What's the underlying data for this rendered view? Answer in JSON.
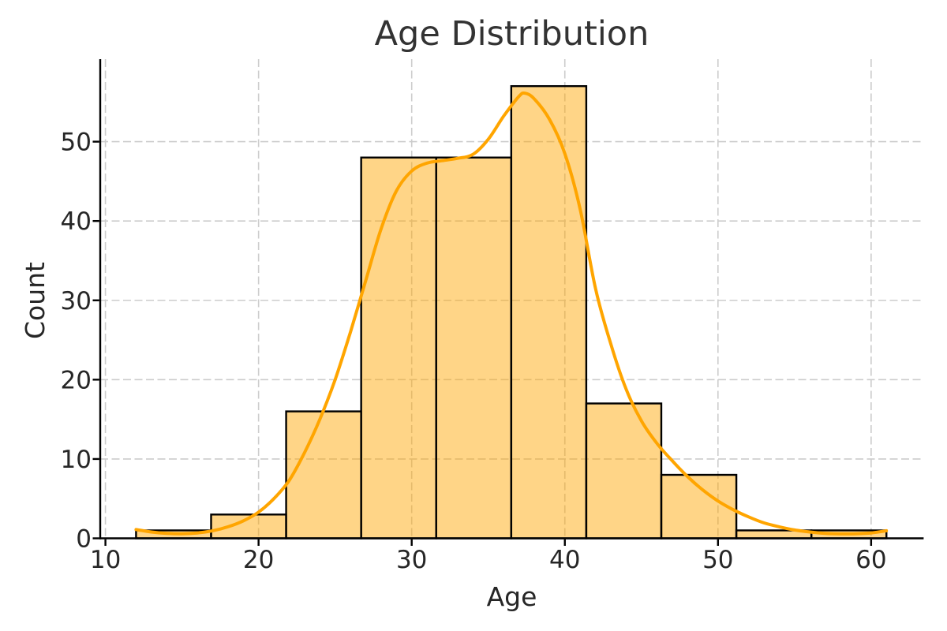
{
  "chart_data": {
    "type": "bar",
    "subtype": "histogram_with_kde",
    "title": "Age Distribution",
    "xlabel": "Age",
    "ylabel": "Count",
    "bin_edges": [
      12.0,
      16.9,
      21.8,
      26.7,
      31.6,
      36.5,
      41.4,
      46.3,
      51.2,
      56.1,
      61.0
    ],
    "counts": [
      1,
      3,
      16,
      48,
      48,
      57,
      17,
      8,
      1,
      1
    ],
    "x_ticks": [
      10,
      20,
      30,
      40,
      50,
      60
    ],
    "y_ticks": [
      0,
      10,
      20,
      30,
      40,
      50
    ],
    "xlim": [
      9.66,
      63.43
    ],
    "ylim": [
      0,
      60.4
    ],
    "grid": {
      "show": true,
      "dash": "10 4.5",
      "color": "#cccccc",
      "width": 1.6
    },
    "legend": "none",
    "kde_series": {
      "name": "kde-curve",
      "points": [
        [
          12,
          1.1
        ],
        [
          13,
          0.8
        ],
        [
          14,
          0.62
        ],
        [
          15,
          0.58
        ],
        [
          16,
          0.68
        ],
        [
          17,
          0.95
        ],
        [
          18,
          1.45
        ],
        [
          19,
          2.2
        ],
        [
          20,
          3.3
        ],
        [
          21,
          5.0
        ],
        [
          22,
          7.3
        ],
        [
          23,
          10.8
        ],
        [
          24,
          15.0
        ],
        [
          25,
          20.0
        ],
        [
          26,
          26.0
        ],
        [
          27,
          32.5
        ],
        [
          28,
          39.0
        ],
        [
          29,
          43.8
        ],
        [
          30,
          46.3
        ],
        [
          31,
          47.3
        ],
        [
          32,
          47.6
        ],
        [
          33,
          47.9
        ],
        [
          34,
          48.4
        ],
        [
          35,
          50.3
        ],
        [
          36,
          53.2
        ],
        [
          37,
          55.7
        ],
        [
          37.4,
          56.1
        ],
        [
          38,
          55.4
        ],
        [
          39,
          52.8
        ],
        [
          40,
          48.5
        ],
        [
          41,
          41.5
        ],
        [
          42,
          31.5
        ],
        [
          43,
          24.5
        ],
        [
          44,
          18.8
        ],
        [
          45,
          14.8
        ],
        [
          46,
          12.0
        ],
        [
          47,
          9.8
        ],
        [
          48,
          7.8
        ],
        [
          49,
          6.1
        ],
        [
          50,
          4.7
        ],
        [
          51,
          3.6
        ],
        [
          52,
          2.7
        ],
        [
          53,
          1.95
        ],
        [
          54,
          1.45
        ],
        [
          55,
          1.05
        ],
        [
          56,
          0.8
        ],
        [
          57,
          0.62
        ],
        [
          58,
          0.56
        ],
        [
          59,
          0.58
        ],
        [
          60,
          0.68
        ],
        [
          61,
          0.95
        ]
      ]
    },
    "colors": {
      "background": "#ffffff",
      "bar_fill": "#ffa500",
      "bar_alpha": 0.47,
      "bar_edge": "#000000",
      "kde_line": "#ffa500",
      "spine": "#000000",
      "tick_text": "#262626",
      "label_text": "#262626",
      "title_text": "#333333"
    }
  }
}
